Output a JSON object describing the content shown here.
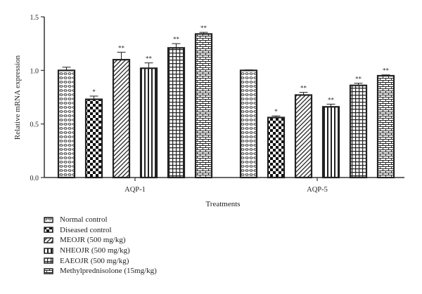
{
  "chart_data": {
    "type": "bar",
    "xlabel": "Treatments",
    "ylabel": "Relative mRNA expression",
    "ylim": [
      0,
      1.5
    ],
    "yticks": [
      "0.0",
      "0.5",
      "1.0",
      "1.5"
    ],
    "categories": [
      "AQP-1",
      "AQP-5"
    ],
    "grid": false,
    "legend_position": "bottom-left",
    "series": [
      {
        "name": "Normal control",
        "pattern": "dots",
        "values": [
          1.0,
          1.0
        ],
        "errors": [
          0.03,
          0.005
        ],
        "labels": [
          "",
          ""
        ]
      },
      {
        "name": "Diseased control",
        "pattern": "checker",
        "values": [
          0.73,
          0.56
        ],
        "errors": [
          0.03,
          0.015
        ],
        "labels": [
          "*",
          "*"
        ]
      },
      {
        "name": "MEOJR (500 mg/kg)",
        "pattern": "diagonal",
        "values": [
          1.1,
          0.77
        ],
        "errors": [
          0.07,
          0.025
        ],
        "labels": [
          "**",
          "**"
        ]
      },
      {
        "name": "NHEOJR (500 mg/kg)",
        "pattern": "vertical",
        "values": [
          1.02,
          0.66
        ],
        "errors": [
          0.05,
          0.025
        ],
        "labels": [
          "**",
          "**"
        ]
      },
      {
        "name": "EAEOJR (500 mg/kg)",
        "pattern": "grid",
        "values": [
          1.21,
          0.86
        ],
        "errors": [
          0.04,
          0.02
        ],
        "labels": [
          "**",
          "**"
        ]
      },
      {
        "name": "Methylprednisolone (15mg/kg)",
        "pattern": "brick",
        "values": [
          1.34,
          0.95
        ],
        "errors": [
          0.015,
          0.008
        ],
        "labels": [
          "**",
          "**"
        ]
      }
    ]
  }
}
